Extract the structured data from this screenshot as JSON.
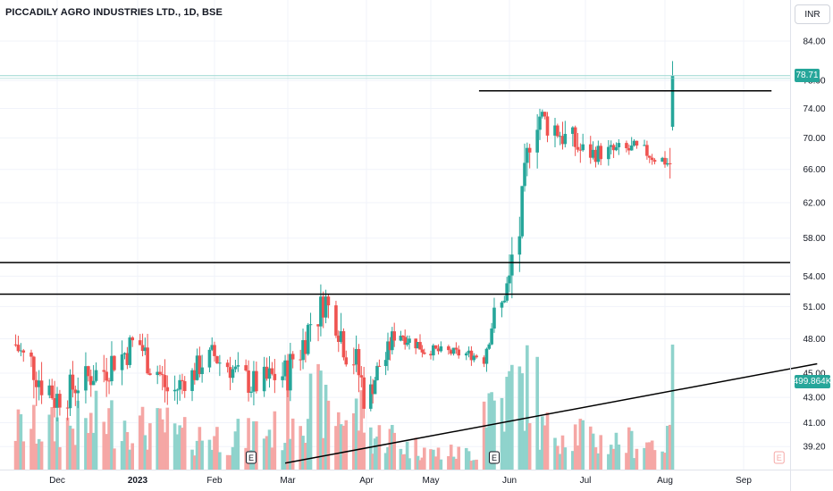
{
  "title": "PICCADILY AGRO INDUSTRIES LTD., 1D, BSE",
  "currency": "INR",
  "last_price_label": "78.71",
  "last_volume_label": "499.864K",
  "colors": {
    "up": "#26a69a",
    "down": "#ef5350",
    "volume_up": "#8fd3cc",
    "volume_down": "#f5a7a5",
    "price_line": "#9ad7d0",
    "grid": "#f0f3fa",
    "axis_text": "#131722",
    "drawing": "#000000"
  },
  "event_marker_label": "E",
  "chart_data": {
    "type": "candlestick",
    "x_ticks": [
      "Dec",
      "2023",
      "Feb",
      "Mar",
      "Apr",
      "May",
      "Jun",
      "Jul",
      "Aug",
      "Sep"
    ],
    "y_ticks": [
      "84.00",
      "78.00",
      "74.00",
      "70.00",
      "66.00",
      "62.00",
      "58.00",
      "54.00",
      "51.00",
      "48.00",
      "45.00",
      "43.00",
      "41.00",
      "39.20"
    ],
    "y_tick_values": [
      84,
      78,
      74,
      70,
      66,
      62,
      58,
      54,
      51,
      48,
      45,
      43,
      41,
      39.2
    ],
    "log_scale": true,
    "grid": true,
    "last_price": 78.71,
    "horizontal_lines": [
      76.5,
      55.4,
      52.2
    ],
    "trendline": {
      "from": {
        "date": "2023-02-28",
        "price": 38
      },
      "to": {
        "date": "2023-09-30",
        "price": 45.8
      }
    },
    "earnings_markers": [
      "2023-02-15",
      "2023-05-26",
      "2023-09-15"
    ],
    "segments": [
      {
        "start": "2022-11-15",
        "end": "2022-11-30",
        "from": 47.5,
        "to": 43,
        "amp": 1.6,
        "vol": 1.5
      },
      {
        "start": "2022-12-01",
        "end": "2022-12-15",
        "from": 43,
        "to": 45,
        "amp": 1.4,
        "vol": 1.6
      },
      {
        "start": "2022-12-16",
        "end": "2022-12-31",
        "from": 45,
        "to": 47.5,
        "amp": 1.5,
        "vol": 1.8
      },
      {
        "start": "2023-01-01",
        "end": "2023-01-15",
        "from": 47.5,
        "to": 43.5,
        "amp": 1.4,
        "vol": 1.5
      },
      {
        "start": "2023-01-16",
        "end": "2023-01-31",
        "from": 43.5,
        "to": 46.5,
        "amp": 1.2,
        "vol": 1.2
      },
      {
        "start": "2023-02-01",
        "end": "2023-02-15",
        "from": 46.5,
        "to": 44,
        "amp": 1.2,
        "vol": 1.2
      },
      {
        "start": "2023-02-16",
        "end": "2023-02-28",
        "from": 44,
        "to": 45,
        "amp": 1.4,
        "vol": 1.4
      },
      {
        "start": "2023-03-01",
        "end": "2023-03-15",
        "from": 45,
        "to": 51.5,
        "amp": 1.6,
        "vol": 2.4
      },
      {
        "start": "2023-03-16",
        "end": "2023-03-31",
        "from": 51.5,
        "to": 43.5,
        "amp": 1.8,
        "vol": 2.0
      },
      {
        "start": "2023-04-01",
        "end": "2023-04-15",
        "from": 43.5,
        "to": 48.5,
        "amp": 1.0,
        "vol": 1.2
      },
      {
        "start": "2023-04-16",
        "end": "2023-04-30",
        "from": 48.5,
        "to": 47,
        "amp": 0.7,
        "vol": 0.8
      },
      {
        "start": "2023-05-01",
        "end": "2023-05-20",
        "from": 47,
        "to": 46.5,
        "amp": 0.5,
        "vol": 0.6
      },
      {
        "start": "2023-05-21",
        "end": "2023-05-31",
        "from": 46.5,
        "to": 53,
        "amp": 1.0,
        "vol": 2.5
      },
      {
        "start": "2023-06-01",
        "end": "2023-06-12",
        "from": 53,
        "to": 73,
        "amp": 2.5,
        "vol": 3.0
      },
      {
        "start": "2023-06-13",
        "end": "2023-06-30",
        "from": 73,
        "to": 68,
        "amp": 2.0,
        "vol": 1.4
      },
      {
        "start": "2023-07-01",
        "end": "2023-07-20",
        "from": 68,
        "to": 68.5,
        "amp": 1.2,
        "vol": 1.0
      },
      {
        "start": "2023-07-21",
        "end": "2023-08-02",
        "from": 68.5,
        "to": 66.8,
        "amp": 0.9,
        "vol": 1.0
      },
      {
        "start": "2023-08-03",
        "end": "2023-08-04",
        "from": 66.8,
        "to": 78.71,
        "amp": 2.0,
        "vol": 3.0
      }
    ]
  }
}
